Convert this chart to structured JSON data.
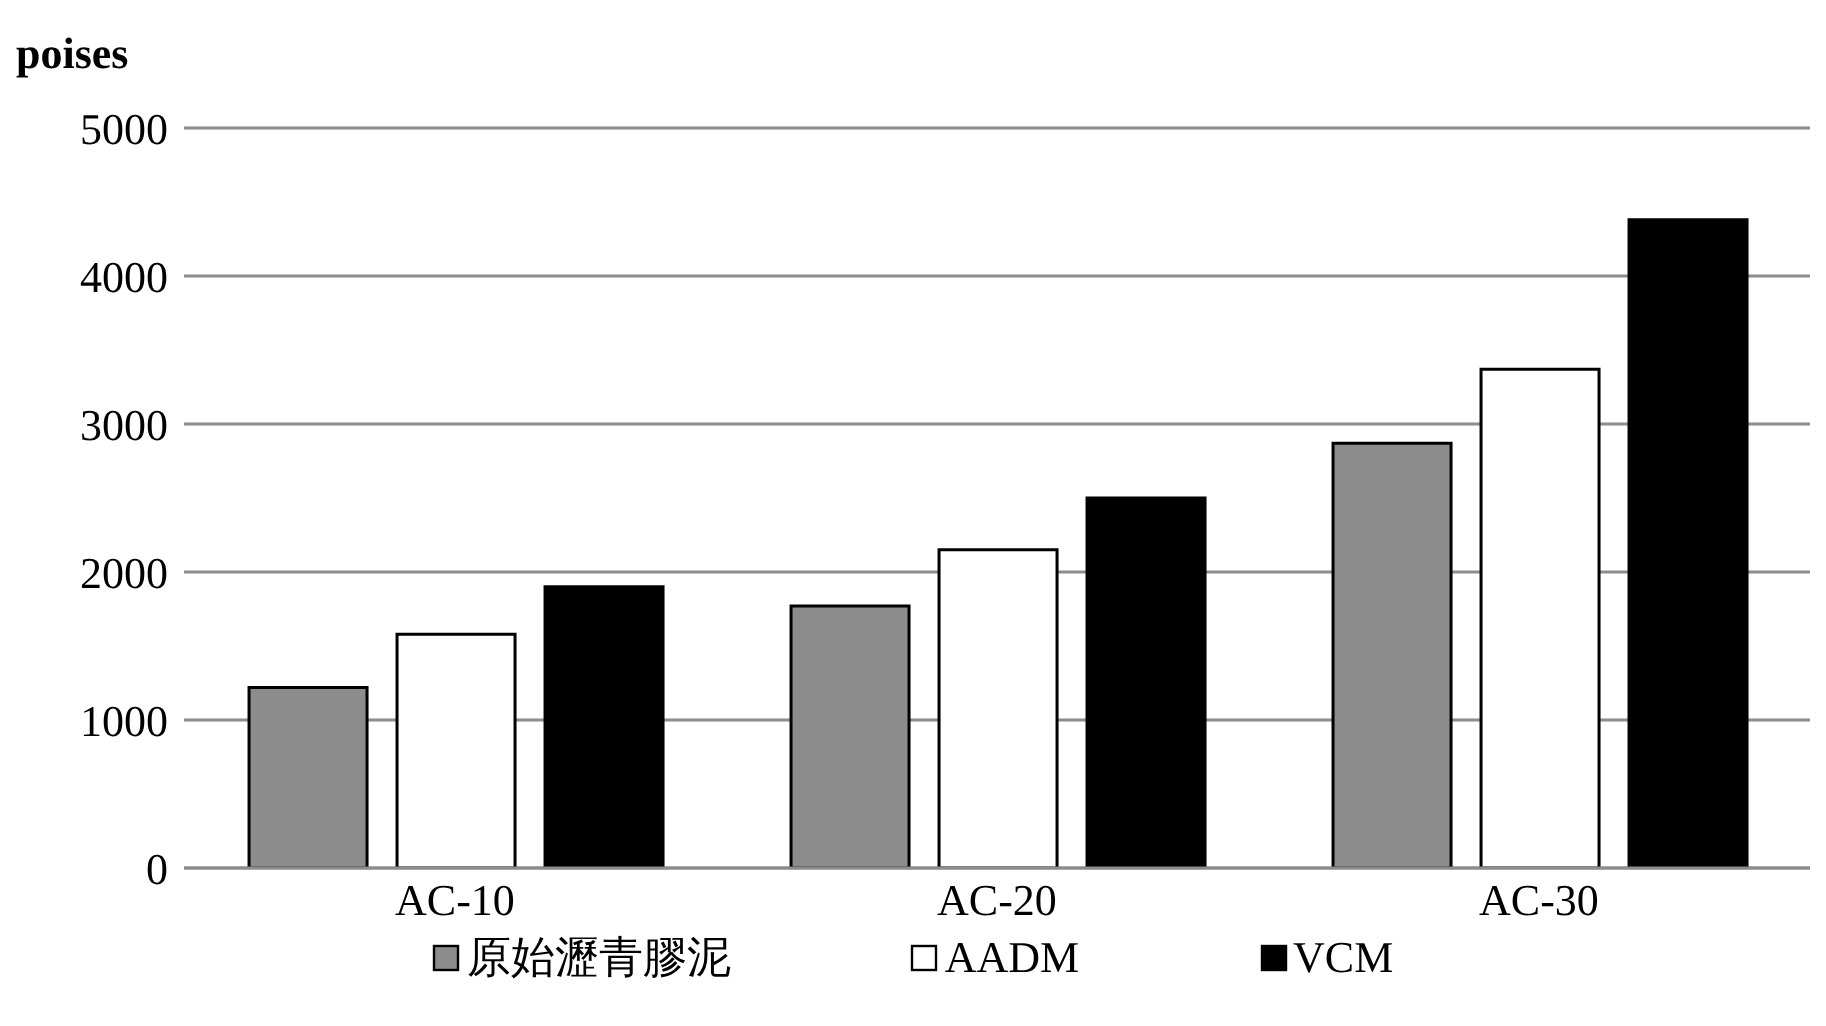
{
  "chart_data": {
    "type": "bar",
    "ylabel": "poises",
    "categories": [
      "AC-10",
      "AC-20",
      "AC-30"
    ],
    "series": [
      {
        "name": "原始瀝青膠泥",
        "color": "#8c8c8c",
        "values": [
          1220,
          1770,
          2870
        ]
      },
      {
        "name": "AADM",
        "color": "#ffffff",
        "values": [
          1580,
          2150,
          3370
        ]
      },
      {
        "name": "VCM",
        "color": "#000000",
        "values": [
          1900,
          2500,
          4380
        ]
      }
    ],
    "ylim": [
      0,
      5000
    ],
    "yticks": [
      0,
      1000,
      2000,
      3000,
      4000,
      5000
    ],
    "grid": "y",
    "legend": "bottom"
  }
}
